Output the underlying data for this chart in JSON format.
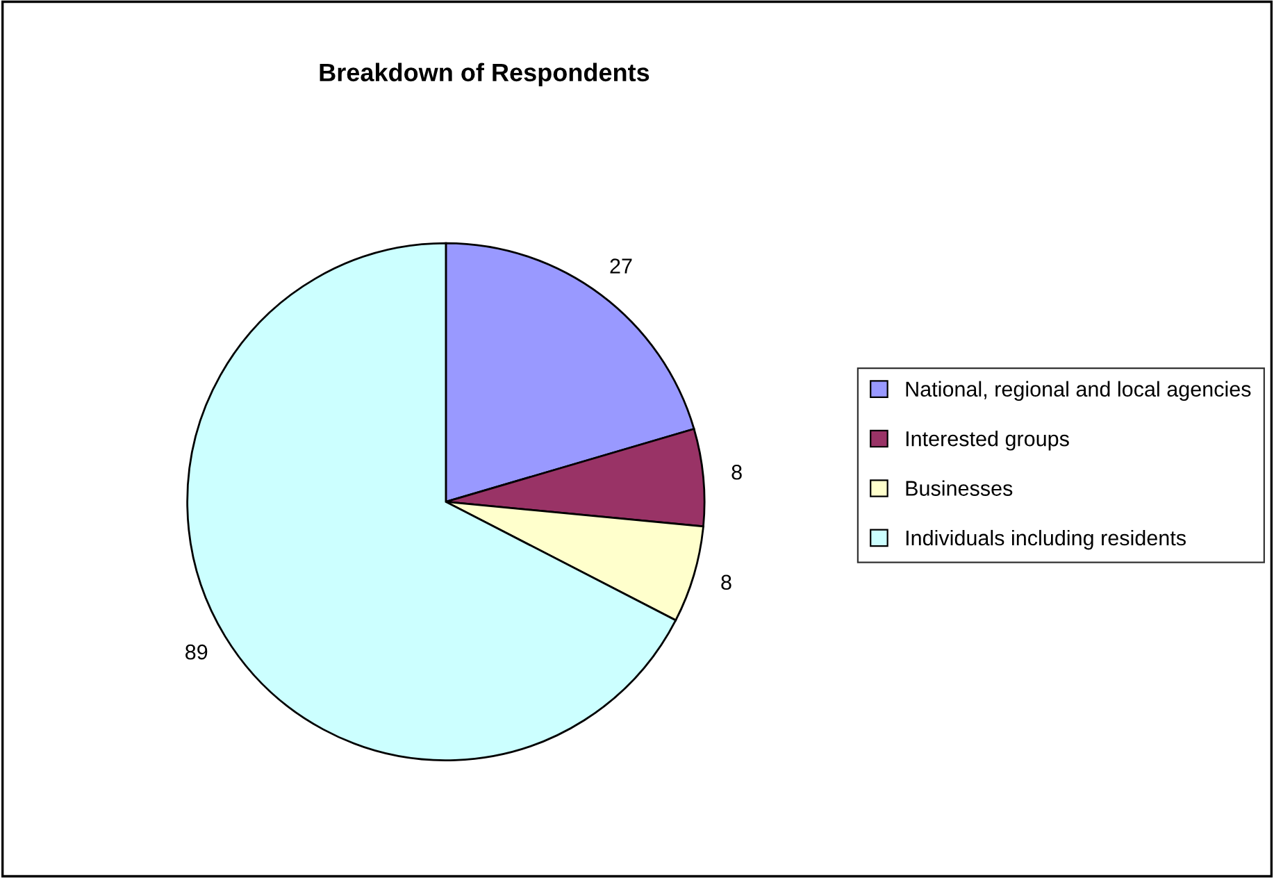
{
  "chart_data": {
    "type": "pie",
    "title": "Breakdown of Respondents",
    "categories": [
      "National, regional and local agencies",
      "Interested groups",
      "Businesses",
      "Individuals including residents"
    ],
    "values": [
      27,
      8,
      8,
      89
    ],
    "colors": [
      "#9999ff",
      "#993366",
      "#ffffcc",
      "#ccffff"
    ],
    "data_labels": true,
    "legend": "right"
  }
}
